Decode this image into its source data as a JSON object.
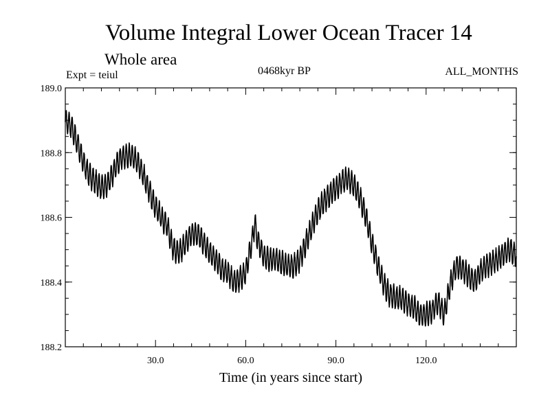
{
  "header": {
    "title": "Volume Integral Lower Ocean Tracer 14",
    "subtitle": "Whole area",
    "experiment": "Expt = teiul",
    "period": "0468kyr BP",
    "months": "ALL_MONTHS"
  },
  "chart_data": {
    "type": "line",
    "title": "Volume Integral Lower Ocean Tracer 14",
    "xlabel": "Time (in years since start)",
    "ylabel": "",
    "xlim": [
      0,
      150
    ],
    "ylim": [
      188.2,
      189.0
    ],
    "x_ticks": [
      30,
      60,
      90,
      120
    ],
    "x_tick_labels": [
      "30.0",
      "60.0",
      "90.0",
      "120.0"
    ],
    "y_ticks": [
      188.2,
      188.4,
      188.6,
      188.8,
      189.0
    ],
    "y_tick_labels": [
      "188.2",
      "188.4",
      "188.6",
      "188.8",
      "189.0"
    ],
    "seasonal_amplitude": 0.035,
    "series": [
      {
        "name": "Volume Integral Lower Ocean Tracer 14",
        "color": "#000000",
        "x": [
          0,
          2,
          4,
          6,
          8,
          10,
          12,
          14,
          16,
          18,
          20,
          22,
          24,
          26,
          28,
          30,
          32,
          34,
          36,
          38,
          40,
          42,
          44,
          46,
          48,
          50,
          52,
          54,
          56,
          58,
          60,
          62,
          63,
          64,
          66,
          68,
          70,
          72,
          74,
          76,
          78,
          80,
          82,
          84,
          86,
          88,
          90,
          92,
          94,
          96,
          98,
          100,
          102,
          104,
          106,
          108,
          110,
          112,
          114,
          116,
          118,
          120,
          122,
          124,
          126,
          128,
          130,
          132,
          134,
          136,
          138,
          140,
          142,
          144,
          146,
          148,
          150
        ],
        "values": [
          188.9,
          188.88,
          188.83,
          188.77,
          188.73,
          188.71,
          188.69,
          188.7,
          188.74,
          188.78,
          188.79,
          188.79,
          188.77,
          188.73,
          188.68,
          188.63,
          188.6,
          188.57,
          188.5,
          188.49,
          188.52,
          188.55,
          188.55,
          188.52,
          188.49,
          188.47,
          188.44,
          188.43,
          188.4,
          188.41,
          188.43,
          188.52,
          188.58,
          188.53,
          188.48,
          188.47,
          188.47,
          188.46,
          188.45,
          188.45,
          188.47,
          188.52,
          188.57,
          188.62,
          188.65,
          188.67,
          188.69,
          188.71,
          188.72,
          188.7,
          188.66,
          188.6,
          188.52,
          188.45,
          188.39,
          188.36,
          188.35,
          188.35,
          188.33,
          188.32,
          188.3,
          188.3,
          188.31,
          188.34,
          188.3,
          188.39,
          188.45,
          188.44,
          188.42,
          188.4,
          188.43,
          188.45,
          188.46,
          188.47,
          188.49,
          188.5,
          188.48
        ]
      }
    ]
  }
}
